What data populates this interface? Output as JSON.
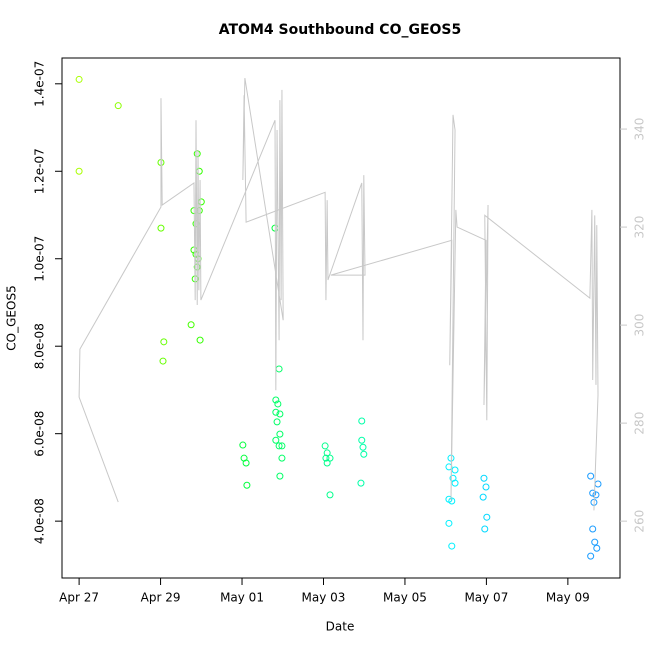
{
  "chart_data": {
    "type": "scatter",
    "title": "ATOM4 Southbound CO_GEOS5",
    "x_label": "Date",
    "y_label": "CO_GEOS5",
    "xlim": [
      -0.42,
      13.28
    ],
    "ylim": [
      2.7e-08,
      1.459e-07
    ],
    "y2lim": [
      248.4,
      354.5
    ],
    "xticks": [
      {
        "value": 0,
        "label": "Apr 27"
      },
      {
        "value": 2,
        "label": "Apr 29"
      },
      {
        "value": 4,
        "label": "May 01"
      },
      {
        "value": 6,
        "label": "May 03"
      },
      {
        "value": 8,
        "label": "May 05"
      },
      {
        "value": 10,
        "label": "May 07"
      },
      {
        "value": 12,
        "label": "May 09"
      }
    ],
    "yticks": [
      {
        "value": 4e-08,
        "label": "4.0e-08"
      },
      {
        "value": 6e-08,
        "label": "6.0e-08"
      },
      {
        "value": 8e-08,
        "label": "8.0e-08"
      },
      {
        "value": 1e-07,
        "label": "1.0e-07"
      },
      {
        "value": 1.2e-07,
        "label": "1.2e-07"
      },
      {
        "value": 1.4e-07,
        "label": "1.4e-07"
      }
    ],
    "y2ticks": [
      260,
      280,
      300,
      320,
      340
    ],
    "y2_color": "#c8c8c8",
    "series": [
      {
        "x": [
          0,
          0,
          0.96,
          2.01,
          2.01,
          2.08,
          2.06,
          2.75,
          2.9,
          2.95,
          2.82,
          2.95,
          3.0,
          2.87,
          2.82,
          2.87,
          2.92,
          2.9,
          2.85,
          2.97,
          4.81,
          4.02,
          4.05,
          4.1,
          4.12,
          4.91,
          4.83,
          4.88,
          4.83,
          4.93,
          4.86,
          4.93,
          4.83,
          4.91,
          4.98,
          4.98,
          4.93,
          6.04,
          6.09,
          6.06,
          6.16,
          6.09,
          6.16,
          6.94,
          6.94,
          6.97,
          6.99,
          6.92,
          9.13,
          9.08,
          9.23,
          9.18,
          9.08,
          9.15,
          9.08,
          9.15,
          9.23,
          9.94,
          9.99,
          9.92,
          10.01,
          9.96,
          12.56,
          12.74,
          12.61,
          12.69,
          12.64,
          12.61,
          12.66,
          12.71,
          12.56
        ],
        "values": [
          1.41e-07,
          1.2e-07,
          1.35e-07,
          1.22e-07,
          1.07e-07,
          8.1e-08,
          7.66e-08,
          8.49e-08,
          1.24e-07,
          1.2e-07,
          1.11e-07,
          1.11e-07,
          1.13e-07,
          1.08e-07,
          1.02e-07,
          1.01e-07,
          1e-07,
          9.81e-08,
          9.54e-08,
          8.14e-08,
          1.07e-07,
          5.74e-08,
          5.44e-08,
          5.33e-08,
          4.82e-08,
          7.48e-08,
          6.77e-08,
          6.68e-08,
          6.49e-08,
          6.45e-08,
          6.27e-08,
          5.99e-08,
          5.85e-08,
          5.72e-08,
          5.72e-08,
          5.44e-08,
          5.03e-08,
          5.72e-08,
          5.56e-08,
          5.44e-08,
          5.44e-08,
          5.33e-08,
          4.6e-08,
          6.29e-08,
          5.85e-08,
          5.69e-08,
          5.53e-08,
          4.87e-08,
          5.44e-08,
          5.24e-08,
          5.17e-08,
          4.98e-08,
          4.5e-08,
          4.46e-08,
          3.95e-08,
          3.43e-08,
          4.87e-08,
          4.98e-08,
          4.78e-08,
          4.55e-08,
          4.09e-08,
          3.82e-08,
          5.03e-08,
          4.85e-08,
          4.64e-08,
          4.6e-08,
          4.43e-08,
          3.82e-08,
          3.52e-08,
          3.38e-08,
          3.2e-08
        ],
        "colors": [
          "#a8ff00",
          "#a8ff00",
          "#8cff00",
          "#66ff00",
          "#66ff00",
          "#66ff00",
          "#66ff00",
          "#44ff00",
          "#33ff00",
          "#33ff00",
          "#33ff00",
          "#33ff00",
          "#33ff00",
          "#33ff00",
          "#33ff00",
          "#33ff00",
          "#33ff00",
          "#33ff00",
          "#33ff00",
          "#33ff00",
          "#00ff3c",
          "#00ff3c",
          "#00ff3c",
          "#00ff3c",
          "#00ff3c",
          "#00ff66",
          "#00ff66",
          "#00ff66",
          "#00ff66",
          "#00ff66",
          "#00ff66",
          "#00ff66",
          "#00ff66",
          "#00ff66",
          "#00ff66",
          "#00ff66",
          "#00ff66",
          "#00ff8c",
          "#00ff8c",
          "#00ff8c",
          "#00ff8c",
          "#00ff8c",
          "#00ff8c",
          "#00ffa8",
          "#00ffa8",
          "#00ffa8",
          "#00ffa8",
          "#00ffa8",
          "#00f0ff",
          "#00f0ff",
          "#00f0ff",
          "#00f0ff",
          "#00f0ff",
          "#00f0ff",
          "#00f0ff",
          "#00f0ff",
          "#00f0ff",
          "#00d8ff",
          "#00d8ff",
          "#00d8ff",
          "#00d8ff",
          "#00d8ff",
          "#1a9cff",
          "#1a9cff",
          "#1a9cff",
          "#1a9cff",
          "#1a9cff",
          "#1a9cff",
          "#1a9cff",
          "#1a9cff",
          "#1a9cff"
        ]
      },
      {
        "type": "line",
        "axis": "y2",
        "color": "#c8c8c8",
        "x": [
          0.96,
          0,
          0.02,
          2.01,
          2.01,
          2.04,
          2.82,
          2.85,
          2.87,
          2.9,
          2.92,
          2.94,
          2.97,
          2.99,
          4.81,
          4.83,
          4.86,
          4.91,
          4.93,
          4.96,
          4.98,
          5.01,
          4.07,
          4.02,
          4.05,
          4.1,
          6.04,
          6.06,
          6.09,
          6.11,
          6.94,
          6.97,
          6.99,
          7.02,
          6.18,
          9.15,
          9.1,
          9.18,
          9.23,
          9.13,
          9.25,
          9.28,
          9.99,
          9.94,
          10.04,
          10.01,
          9.96,
          12.54,
          12.59,
          12.61,
          12.66,
          12.69,
          12.71,
          12.74,
          12.64
        ],
        "values": [
          263.9,
          285.3,
          295.1,
          324.1,
          346.3,
          324.5,
          329.0,
          305.1,
          341.8,
          304.1,
          335.7,
          307.1,
          329.6,
          305.1,
          341.8,
          286.7,
          339.8,
          296.9,
          345.9,
          305.1,
          348.0,
          301.0,
          350.4,
          329.6,
          346.9,
          321.0,
          327.1,
          305.1,
          325.5,
          309.2,
          329.0,
          296.9,
          330.6,
          310.2,
          310.2,
          317.3,
          291.8,
          342.9,
          339.8,
          264.3,
          323.5,
          320.0,
          317.3,
          283.7,
          324.5,
          280.6,
          322.4,
          305.5,
          323.5,
          288.8,
          322.4,
          287.8,
          320.4,
          285.7,
          262.2
        ]
      }
    ]
  }
}
